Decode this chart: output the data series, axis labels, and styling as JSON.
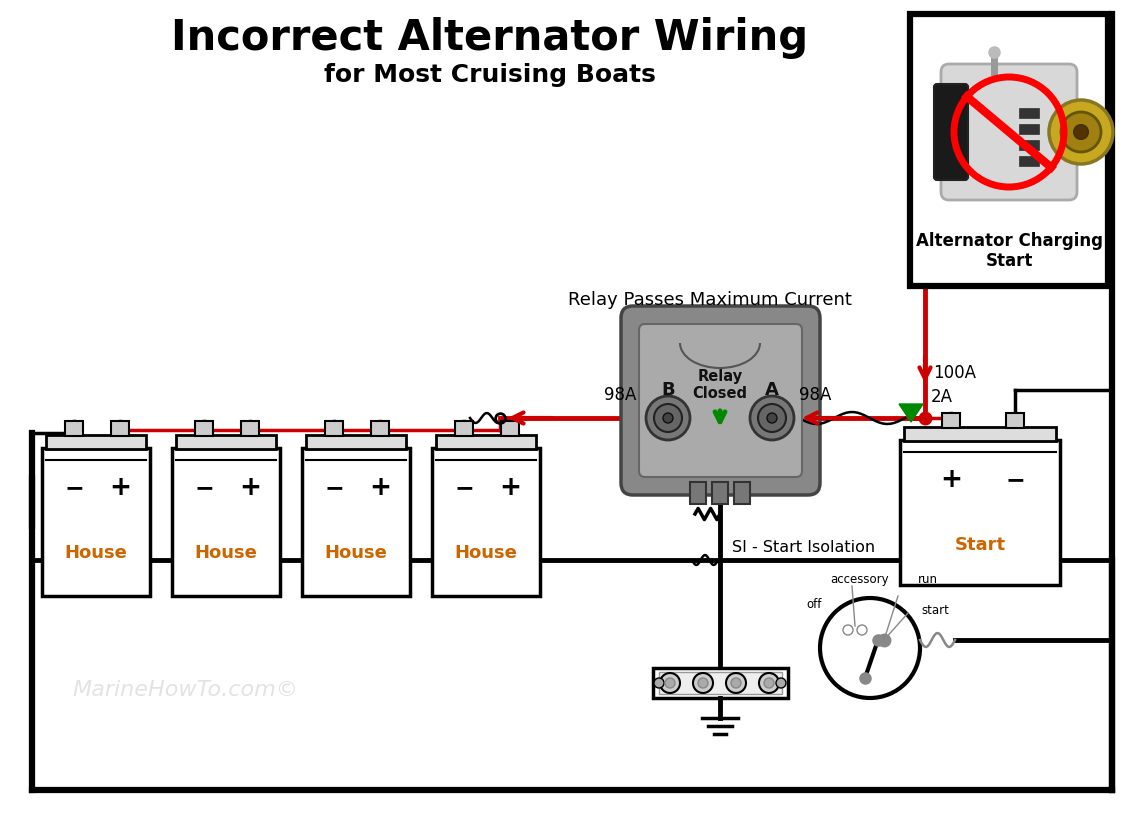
{
  "title": "Incorrect Alternator Wiring",
  "subtitle": "for Most Cruising Boats",
  "title_fontsize": 30,
  "subtitle_fontsize": 18,
  "background_color": "#ffffff",
  "red_color": "#cc0000",
  "green_color": "#008800",
  "battery_label_color": "#cc6600",
  "watermark_color": "#cccccc",
  "watermark_text": "MarineHowTo.com©",
  "house_label": "House",
  "start_label": "Start",
  "relay_label_b": "B",
  "relay_label_a": "A",
  "relay_center_label": "Relay\nClosed",
  "relay_passes_label": "Relay Passes Maximum Current",
  "alternator_label": "Alternator Charging\nStart",
  "si_label": "SI - Start Isolation",
  "current_100a": "100A",
  "current_98a_left": "98A",
  "current_98a_right": "98A",
  "current_2a": "2A",
  "accessory_label": "accessory",
  "off_label": "off",
  "run_label": "run",
  "start_sw_label": "start"
}
